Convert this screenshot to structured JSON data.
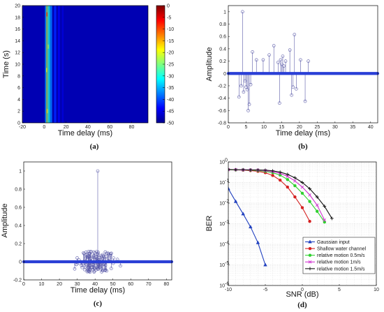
{
  "chart_data": [
    {
      "panel": "(a)",
      "type": "heatmap",
      "xlabel": "Time delay (ms)",
      "ylabel": "Time (s)",
      "xlim": [
        -20,
        95
      ],
      "ylim": [
        0,
        20
      ],
      "xticks": [
        -20,
        0,
        20,
        40,
        60,
        80
      ],
      "yticks": [
        0,
        2,
        4,
        6,
        8,
        10,
        12,
        14,
        16,
        18,
        20
      ],
      "colorbar": {
        "min": -50,
        "max": 0,
        "ticks": [
          0,
          -5,
          -10,
          -15,
          -20,
          -25,
          -30,
          -35,
          -40,
          -45,
          -50
        ]
      },
      "stripes": [
        {
          "x": 1.2,
          "w": 0.8,
          "level": -35
        },
        {
          "x": 2.5,
          "w": 1.0,
          "level": -22
        },
        {
          "x": 3.8,
          "w": 1.0,
          "level": -28
        },
        {
          "x": 5.0,
          "w": 1.0,
          "level": -32
        },
        {
          "x": 6.5,
          "w": 1.5,
          "level": -38
        },
        {
          "x": 10.0,
          "w": 2.0,
          "level": -42
        },
        {
          "x": 13.5,
          "w": 1.5,
          "level": -44
        },
        {
          "x": 17.0,
          "w": 1.5,
          "level": -46
        }
      ],
      "hotspots": [
        {
          "x": 2.5,
          "y": 18.5,
          "level": -12
        },
        {
          "x": 2.6,
          "y": 2.0,
          "level": -18
        },
        {
          "x": 2.4,
          "y": 9.0,
          "level": -20
        },
        {
          "x": 3.8,
          "y": 13.0,
          "level": -24
        }
      ]
    },
    {
      "panel": "(b)",
      "type": "stem",
      "xlabel": "Time delay (ms)",
      "ylabel": "Amplitude",
      "xlim": [
        0,
        42
      ],
      "ylim": [
        -0.8,
        1.1
      ],
      "xticks": [
        0,
        5,
        10,
        15,
        20,
        25,
        30,
        35,
        40
      ],
      "yticks": [
        -0.8,
        -0.6,
        -0.4,
        -0.2,
        0,
        0.2,
        0.4,
        0.6,
        0.8,
        1
      ],
      "baseline_range": [
        0,
        42
      ],
      "stems": [
        [
          3.0,
          -0.38
        ],
        [
          3.6,
          -0.2
        ],
        [
          4.0,
          1.0
        ],
        [
          4.3,
          -0.3
        ],
        [
          4.7,
          -0.12
        ],
        [
          5.0,
          -0.22
        ],
        [
          5.3,
          -0.26
        ],
        [
          5.6,
          -0.6
        ],
        [
          5.9,
          -0.5
        ],
        [
          6.3,
          -0.18
        ],
        [
          6.8,
          0.35
        ],
        [
          7.9,
          0.22
        ],
        [
          9.8,
          0.22
        ],
        [
          11.5,
          0.3
        ],
        [
          12.8,
          0.45
        ],
        [
          14.0,
          0.18
        ],
        [
          14.4,
          -0.48
        ],
        [
          14.7,
          0.22
        ],
        [
          15.0,
          0.15
        ],
        [
          15.3,
          0.28
        ],
        [
          15.6,
          0.12
        ],
        [
          16.1,
          0.2
        ],
        [
          17.3,
          0.38
        ],
        [
          17.8,
          -0.35
        ],
        [
          18.2,
          -0.22
        ],
        [
          18.6,
          0.63
        ],
        [
          19.1,
          -0.25
        ],
        [
          20.3,
          0.22
        ],
        [
          21.6,
          -0.45
        ],
        [
          22.5,
          0.2
        ]
      ]
    },
    {
      "panel": "(c)",
      "type": "stem",
      "xlabel": "Time delay (ms)",
      "ylabel": "Amplitude",
      "xlim": [
        0,
        83
      ],
      "ylim": [
        -0.2,
        1.1
      ],
      "xticks": [
        0,
        10,
        20,
        30,
        40,
        50,
        60,
        70,
        80
      ],
      "yticks": [
        -0.2,
        0,
        0.2,
        0.4,
        0.6,
        0.8,
        1
      ],
      "baseline_range": [
        0,
        83
      ],
      "peak": [
        41.5,
        1.0
      ],
      "cluster": {
        "center": 41.5,
        "spread": 16,
        "amp": 0.12,
        "count": 120,
        "seed": 7
      }
    },
    {
      "panel": "(d)",
      "type": "line",
      "xlabel": "SNR (dB)",
      "ylabel": "BER",
      "yscale": "log",
      "xlim": [
        -10,
        10
      ],
      "ylim": [
        1e-06,
        1
      ],
      "xticks": [
        -10,
        -5,
        0,
        5,
        10
      ],
      "ytick_exps": [
        0,
        -1,
        -2,
        -3,
        -4,
        -5,
        -6
      ],
      "ytick_base": "10",
      "series": [
        {
          "name": "Gaussian input",
          "color": "#1f3fbf",
          "marker": "triangle",
          "x": [
            -10,
            -9,
            -8,
            -7,
            -6,
            -5
          ],
          "y": [
            0.05,
            0.012,
            0.003,
            0.0007,
            0.00012,
            1e-05
          ]
        },
        {
          "name": "Shallow water channel",
          "color": "#d42020",
          "marker": "dot",
          "x": [
            -10,
            -9,
            -8,
            -7,
            -6,
            -5,
            -4,
            -3,
            -2,
            -1,
            0,
            1
          ],
          "y": [
            0.42,
            0.41,
            0.4,
            0.38,
            0.35,
            0.3,
            0.22,
            0.13,
            0.06,
            0.02,
            0.006,
            0.0013
          ]
        },
        {
          "name": "relative motion 0.5m/s",
          "color": "#2fd02f",
          "marker": "dot",
          "x": [
            -10,
            -9,
            -8,
            -7,
            -6,
            -5,
            -4,
            -3,
            -2,
            -1,
            0,
            1,
            2,
            3
          ],
          "y": [
            0.42,
            0.41,
            0.41,
            0.4,
            0.38,
            0.35,
            0.3,
            0.23,
            0.14,
            0.07,
            0.03,
            0.012,
            0.004,
            0.0012
          ]
        },
        {
          "name": "relative motion 1m/s",
          "color": "#d030d0",
          "marker": "x",
          "x": [
            -10,
            -9,
            -8,
            -7,
            -6,
            -5,
            -4,
            -3,
            -2,
            -1,
            0,
            1,
            2,
            3
          ],
          "y": [
            0.42,
            0.42,
            0.41,
            0.41,
            0.4,
            0.38,
            0.34,
            0.28,
            0.2,
            0.12,
            0.06,
            0.025,
            0.008,
            0.0015
          ]
        },
        {
          "name": "relative motion 1.5m/s",
          "color": "#111111",
          "marker": "plus",
          "x": [
            -10,
            -9,
            -8,
            -7,
            -6,
            -5,
            -4,
            -3,
            -2,
            -1,
            0,
            1,
            2,
            3,
            4
          ],
          "y": [
            0.43,
            0.42,
            0.42,
            0.41,
            0.41,
            0.4,
            0.37,
            0.32,
            0.25,
            0.17,
            0.1,
            0.05,
            0.02,
            0.007,
            0.0018
          ]
        }
      ]
    }
  ]
}
